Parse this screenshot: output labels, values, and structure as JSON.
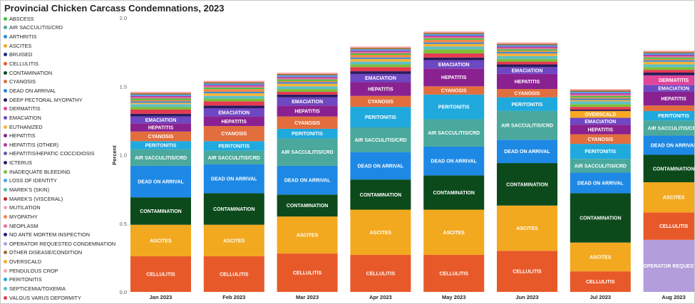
{
  "title": "Provincial Chicken Carcass Condemnations, 2023",
  "legend": [
    {
      "name": "ABSCESS",
      "color": "#3AC43A"
    },
    {
      "name": "AIR SACCULITIS/CRD",
      "color": "#4AA89C"
    },
    {
      "name": "ARTHRITIS",
      "color": "#2F86E0"
    },
    {
      "name": "ASCITES",
      "color": "#F2A91F"
    },
    {
      "name": "BRUISED",
      "color": "#1B2A8A"
    },
    {
      "name": "CELLULITIS",
      "color": "#E8592A"
    },
    {
      "name": "CONTAMINATION",
      "color": "#0C4A1C"
    },
    {
      "name": "CYANOSIS",
      "color": "#E26E3D"
    },
    {
      "name": "DEAD ON ARRIVAL",
      "color": "#1E88E5"
    },
    {
      "name": "DEEP PECTORAL MYOPATHY",
      "color": "#2A1B5E"
    },
    {
      "name": "DERMATITIS",
      "color": "#E0469A"
    },
    {
      "name": "EMACIATION",
      "color": "#6E47C2"
    },
    {
      "name": "EUTHANIZED",
      "color": "#F5B23B"
    },
    {
      "name": "HEPATITIS",
      "color": "#8A2190"
    },
    {
      "name": "HEPATITIS (OTHER)",
      "color": "#B33AA0"
    },
    {
      "name": "HEPATITIS/HEPATIC COCCIDIOSIS",
      "color": "#5B5F9E"
    },
    {
      "name": "ICTERUS",
      "color": "#2D1E6B"
    },
    {
      "name": "INADEQUATE BLEEDING",
      "color": "#7DBF3A"
    },
    {
      "name": "LOSS OF IDENTITY",
      "color": "#42A5F5"
    },
    {
      "name": "MAREK'S (SKIN)",
      "color": "#4FC0B0"
    },
    {
      "name": "MAREK'S (VISCERAL)",
      "color": "#C62828"
    },
    {
      "name": "MUTILATION",
      "color": "#F4A6B6"
    },
    {
      "name": "MYOPATHY",
      "color": "#F08A4B"
    },
    {
      "name": "NEOPLASM",
      "color": "#E57398"
    },
    {
      "name": "NO ANTE MORTEM INSPECTION",
      "color": "#1A237E"
    },
    {
      "name": "OPERATOR REQUESTED CONDEMNATION",
      "color": "#B39DDB"
    },
    {
      "name": "OTHER DISEASE/CONDITION",
      "color": "#9E6B2F"
    },
    {
      "name": "OVERSCALD",
      "color": "#F9A825"
    },
    {
      "name": "PENDULOUS CROP",
      "color": "#F7A6A6"
    },
    {
      "name": "PERITONITIS",
      "color": "#1FA9DD"
    },
    {
      "name": "SEPTICEMIA/TOXEMIA",
      "color": "#5BC0C8"
    },
    {
      "name": "VALGUS VARUS DEFORMITY",
      "color": "#E53950"
    }
  ],
  "chart_data": {
    "type": "bar",
    "stacked": true,
    "title": "Provincial Chicken Carcass Condemnations, 2023",
    "ylabel": "Percent",
    "xlabel": "",
    "ylim": [
      0,
      2.0
    ],
    "yticks": [
      "0.0",
      "0.5",
      "1.0",
      "1.5",
      "2.0"
    ],
    "categories": [
      "Jan 2023",
      "Feb 2023",
      "Mar 2023",
      "Apr 2023",
      "May 2023",
      "Jun 2023",
      "Jul 2023",
      "Aug 2023"
    ],
    "series": [
      {
        "name": "OPERATOR REQUESTED CONDEMNATION",
        "color": "#B39DDB",
        "label": "OPERATOR REQUESTE...",
        "values": [
          0,
          0,
          0,
          0,
          0,
          0,
          0,
          0.38
        ]
      },
      {
        "name": "CELLULITIS",
        "color": "#E8592A",
        "label": "CELLULITIS",
        "values": [
          0.26,
          0.26,
          0.28,
          0.27,
          0.27,
          0.3,
          0.15,
          0.2
        ]
      },
      {
        "name": "ASCITES",
        "color": "#F2A91F",
        "label": "ASCITES",
        "values": [
          0.23,
          0.23,
          0.27,
          0.33,
          0.33,
          0.33,
          0.21,
          0.22
        ]
      },
      {
        "name": "CONTAMINATION",
        "color": "#0C4A1C",
        "label": "CONTAMINATION",
        "values": [
          0.2,
          0.23,
          0.16,
          0.22,
          0.25,
          0.31,
          0.36,
          0.2
        ]
      },
      {
        "name": "DEAD ON ARRIVAL",
        "color": "#1E88E5",
        "label": "DEAD ON ARRIVAL",
        "values": [
          0.23,
          0.21,
          0.21,
          0.2,
          0.21,
          0.17,
          0.15,
          0.14
        ]
      },
      {
        "name": "AIR SACCULITIS/CRD",
        "color": "#4AA89C",
        "label": "AIR SACCULITIS/CRD",
        "values": [
          0.12,
          0.1,
          0.2,
          0.18,
          0.2,
          0.21,
          0.1,
          0.11
        ]
      },
      {
        "name": "PERITONITIS",
        "color": "#1FA9DD",
        "label": "PERITONITIS",
        "values": [
          0.06,
          0.07,
          0.07,
          0.15,
          0.18,
          0.1,
          0.11,
          0.07
        ]
      },
      {
        "name": "CYANOSIS",
        "color": "#E26E3D",
        "label": "CYANOSIS",
        "values": [
          0.07,
          0.11,
          0.09,
          0.08,
          0.06,
          0.06,
          0.07,
          0.04
        ]
      },
      {
        "name": "HEPATITIS",
        "color": "#8A2190",
        "label": "HEPATITIS",
        "values": [
          0.06,
          0.07,
          0.08,
          0.1,
          0.13,
          0.11,
          0.07,
          0.1
        ]
      },
      {
        "name": "EMACIATION",
        "color": "#6E47C2",
        "label": "EMACIATION",
        "values": [
          0.05,
          0.06,
          0.06,
          0.06,
          0.06,
          0.05,
          0.05,
          0.05
        ]
      },
      {
        "name": "DERMATITIS",
        "color": "#E0469A",
        "label": "DERMATITIS",
        "values": [
          0,
          0,
          0,
          0,
          0,
          0,
          0,
          0.07
        ]
      },
      {
        "name": "OVERSCALD",
        "color": "#F9A825",
        "label": "OVERSCALD",
        "values": [
          0,
          0,
          0,
          0,
          0,
          0,
          0.05,
          0
        ]
      },
      {
        "name": "DEEP PECTORAL MYOPATHY",
        "color": "#2A1B5E",
        "label": "",
        "values": [
          0.02,
          0.02,
          0.02,
          0.02,
          0.02,
          0.02,
          0.01,
          0.02
        ]
      },
      {
        "name": "VALGUS VARUS DEFORMITY",
        "color": "#E53950",
        "label": "",
        "values": [
          0.03,
          0.03,
          0.02,
          0.03,
          0.03,
          0.02,
          0.02,
          0.02
        ]
      },
      {
        "name": "INADEQUATE BLEEDING",
        "color": "#7DBF3A",
        "label": "",
        "values": [
          0.02,
          0.02,
          0.02,
          0.02,
          0.03,
          0.02,
          0.02,
          0.02
        ]
      },
      {
        "name": "SEPTICEMIA/TOXEMIA",
        "color": "#5BC0C8",
        "label": "",
        "values": [
          0.02,
          0.02,
          0.02,
          0.02,
          0.02,
          0.02,
          0.02,
          0.02
        ]
      },
      {
        "name": "EUTHANIZED",
        "color": "#F5B23B",
        "label": "",
        "values": [
          0.01,
          0.02,
          0.02,
          0.02,
          0.02,
          0.02,
          0.01,
          0.02
        ]
      },
      {
        "name": "ARTHRITIS",
        "color": "#2F86E0",
        "label": "",
        "values": [
          0.01,
          0.01,
          0.01,
          0.01,
          0.01,
          0.01,
          0.01,
          0.01
        ]
      },
      {
        "name": "MYOPATHY",
        "color": "#F08A4B",
        "label": "",
        "values": [
          0.01,
          0.02,
          0.01,
          0.02,
          0.02,
          0.01,
          0.01,
          0.01
        ]
      },
      {
        "name": "ABSCESS",
        "color": "#3AC43A",
        "label": "",
        "values": [
          0.01,
          0.01,
          0.01,
          0.01,
          0.01,
          0.01,
          0.01,
          0.01
        ]
      },
      {
        "name": "NEOPLASM",
        "color": "#E57398",
        "label": "",
        "values": [
          0.01,
          0.01,
          0.01,
          0.01,
          0.01,
          0.01,
          0.01,
          0.01
        ]
      },
      {
        "name": "HEPATITIS (OTHER)",
        "color": "#B33AA0",
        "label": "",
        "values": [
          0.01,
          0.01,
          0.01,
          0.01,
          0.01,
          0.01,
          0.01,
          0.01
        ]
      },
      {
        "name": "LOSS OF IDENTITY",
        "color": "#42A5F5",
        "label": "",
        "values": [
          0.01,
          0.01,
          0.01,
          0.01,
          0.01,
          0.01,
          0.01,
          0.01
        ]
      },
      {
        "name": "OTHER DISEASE/CONDITION",
        "color": "#9E6B2F",
        "label": "",
        "values": [
          0.01,
          0.01,
          0.01,
          0.01,
          0.01,
          0.01,
          0.01,
          0.01
        ]
      },
      {
        "name": "PENDULOUS CROP",
        "color": "#F7A6A6",
        "label": "",
        "values": [
          0.01,
          0.01,
          0.01,
          0.01,
          0.01,
          0.01,
          0.01,
          0.01
        ]
      }
    ]
  }
}
